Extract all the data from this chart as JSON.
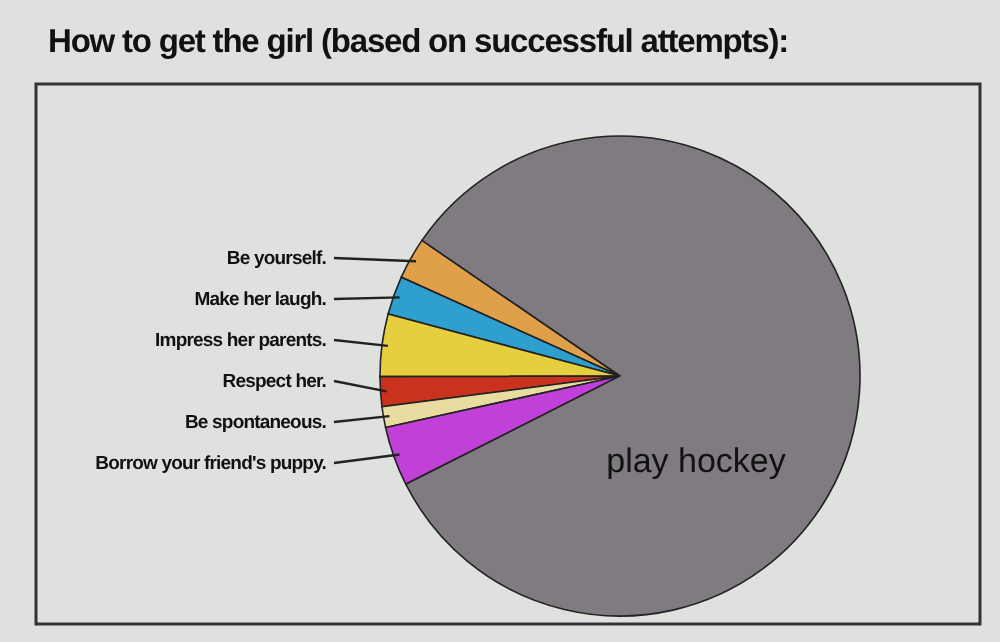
{
  "chart_data": {
    "type": "pie",
    "title": "How to get the girl (based on successful attempts):",
    "categories": [
      "Be yourself.",
      "Make her laugh.",
      "Impress her parents.",
      "Respect her.",
      "Be spontaneous.",
      "Borrow your friend's puppy.",
      "play hockey"
    ],
    "values": [
      2.8,
      2.6,
      4.2,
      2.0,
      1.4,
      4.0,
      83.0
    ],
    "colors": [
      "#e0a04a",
      "#2f9fd0",
      "#e6cf3e",
      "#c8321e",
      "#e8dca0",
      "#c040d8",
      "#7f7b80"
    ],
    "legend": false
  }
}
